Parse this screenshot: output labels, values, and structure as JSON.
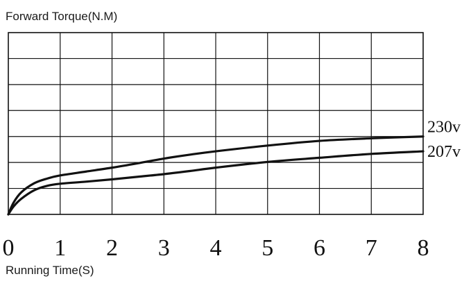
{
  "chart_data": {
    "type": "line",
    "ylabel": "Forward Torque(N.M)",
    "xlabel": "Running Time(S)",
    "x_ticks": [
      "0",
      "1",
      "2",
      "3",
      "4",
      "5",
      "6",
      "7",
      "8"
    ],
    "xlim": [
      0,
      8
    ],
    "ylim": [
      0,
      7
    ],
    "grid": true,
    "series": [
      {
        "name": "230v",
        "x": [
          0,
          0.1,
          0.25,
          0.5,
          0.75,
          1,
          1.5,
          2,
          2.5,
          3,
          3.5,
          4,
          5,
          6,
          7,
          8
        ],
        "y": [
          0,
          0.45,
          0.85,
          1.2,
          1.38,
          1.5,
          1.65,
          1.8,
          1.97,
          2.15,
          2.3,
          2.43,
          2.65,
          2.83,
          2.93,
          3.0
        ]
      },
      {
        "name": "207v",
        "x": [
          0,
          0.1,
          0.25,
          0.5,
          0.75,
          1,
          1.5,
          2,
          2.5,
          3,
          3.5,
          4,
          5,
          6,
          7,
          8
        ],
        "y": [
          0,
          0.3,
          0.6,
          0.93,
          1.1,
          1.18,
          1.26,
          1.35,
          1.45,
          1.55,
          1.67,
          1.8,
          2.02,
          2.18,
          2.33,
          2.43
        ]
      }
    ],
    "colors": {
      "line": "#111111",
      "grid": "#111111",
      "text": "#1a1a1a"
    }
  }
}
